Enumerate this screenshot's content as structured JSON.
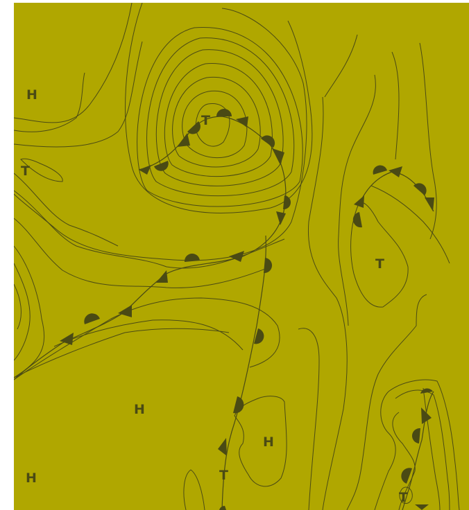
{
  "map": {
    "background_color": "#b0a700",
    "line_color": "#4a4a14",
    "pressure_centers": [
      {
        "type": "high",
        "label": "H"
      },
      {
        "type": "low",
        "label": "T"
      },
      {
        "type": "low",
        "label": "T"
      },
      {
        "type": "high",
        "label": "H"
      },
      {
        "type": "low",
        "label": "T"
      },
      {
        "type": "high",
        "label": "H"
      },
      {
        "type": "high",
        "label": "H"
      },
      {
        "type": "low",
        "label": "T"
      },
      {
        "type": "low",
        "label": "T"
      }
    ],
    "fronts": [
      "occluded",
      "cold",
      "warm",
      "occluded",
      "occluded"
    ]
  }
}
